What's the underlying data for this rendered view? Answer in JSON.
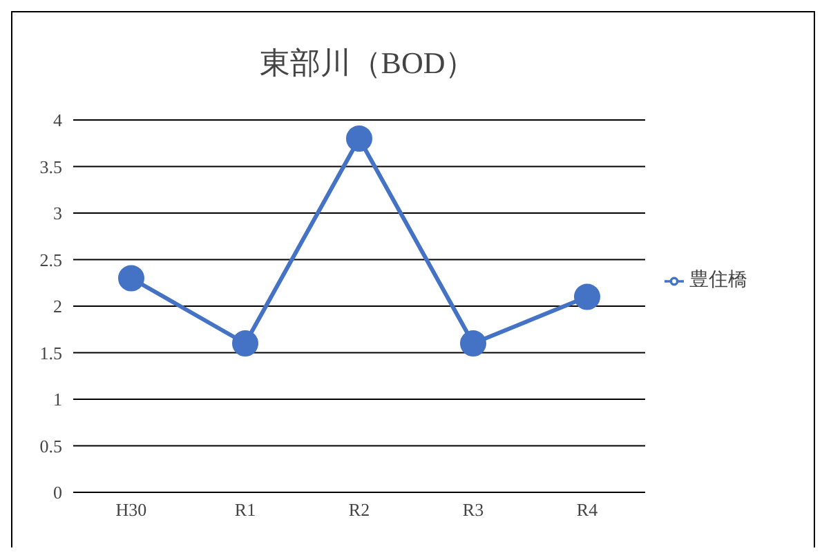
{
  "chart_data": {
    "type": "line",
    "title": "東部川（BOD）",
    "categories": [
      "H30",
      "R1",
      "R2",
      "R3",
      "R4"
    ],
    "series": [
      {
        "name": "豊住橋",
        "color": "#4472c4",
        "values": [
          2.3,
          1.6,
          3.8,
          1.6,
          2.1
        ]
      }
    ],
    "ylim": [
      0,
      4
    ],
    "yticks": [
      0,
      0.5,
      1,
      1.5,
      2,
      2.5,
      3,
      3.5,
      4
    ],
    "grid": "y",
    "legend": "right",
    "marker": "circle",
    "line_style": "solid"
  }
}
